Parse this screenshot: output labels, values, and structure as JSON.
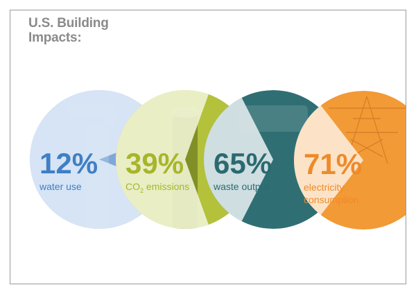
{
  "title_lines": [
    "U.S. Building",
    "Impacts:"
  ],
  "chart_data": {
    "type": "pie",
    "title": "U.S. Building Impacts:",
    "items": [
      {
        "label": "water use",
        "value": 12,
        "display": "12%",
        "circle_color": "#7fa8d8",
        "wedge_color": "#dde8f6",
        "text_color": "#3f7fc4",
        "icon": "faucet-icon"
      },
      {
        "label": "CO2 emissions",
        "label_parts": [
          "CO",
          "2",
          " emissions"
        ],
        "value": 39,
        "display": "39%",
        "circle_color": "#b3c13b",
        "wedge_color": "#edf1cf",
        "text_color": "#a7b52a",
        "icon": "smokestack-icon"
      },
      {
        "label": "waste output",
        "value": 65,
        "display": "65%",
        "circle_color": "#2f6f74",
        "wedge_color": "#dbe6e9",
        "text_color": "#2a6a70",
        "icon": "waste-bin-icon"
      },
      {
        "label": "electricity consumption",
        "label_lines": [
          "electricity",
          "consumption"
        ],
        "value": 71,
        "display": "71%",
        "circle_color": "#f29a35",
        "wedge_color": "#fde8d3",
        "text_color": "#ee8a2a",
        "icon": "power-tower-icon"
      }
    ]
  }
}
